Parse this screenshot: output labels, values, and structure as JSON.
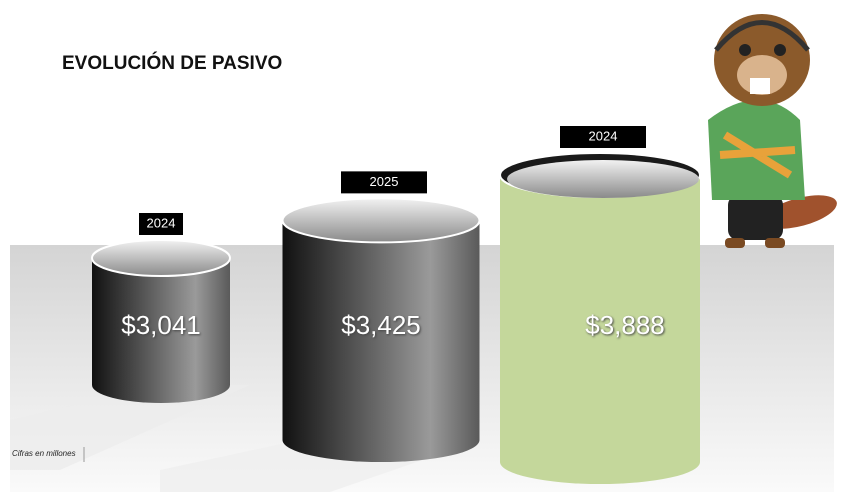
{
  "chart_data": {
    "type": "bar",
    "title": "EVOLUCIÓN DE PASIVO",
    "note": "Cifras en millones",
    "categories": [
      "2024",
      "2025",
      "2024"
    ],
    "values": [
      3041,
      3425,
      3888
    ],
    "value_labels": [
      "$3,041",
      "$3,425",
      "$3,888"
    ],
    "colors": [
      "#111111",
      "#111111",
      "#c4d79b"
    ]
  }
}
